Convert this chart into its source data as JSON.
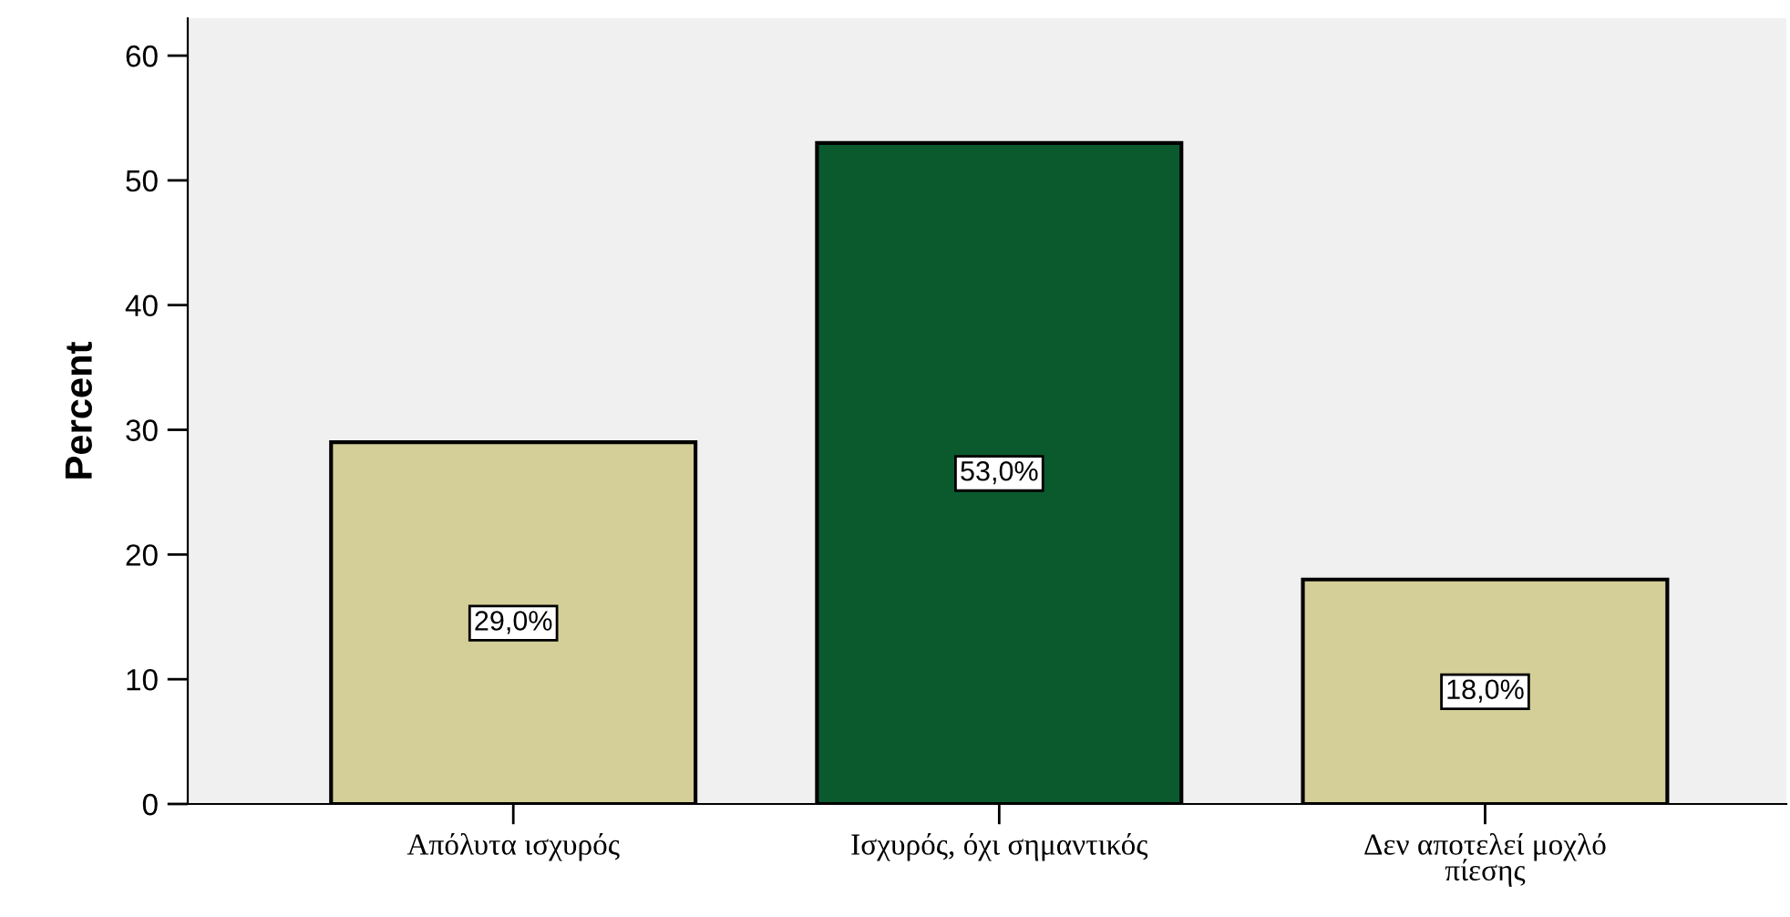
{
  "chart_data": {
    "type": "bar",
    "categories": [
      "Απόλυτα ισχυρός",
      "Ισχυρός, όχι σημαντικός",
      "Δεν αποτελεί μοχλό πίεσης"
    ],
    "values": [
      29.0,
      53.0,
      18.0
    ],
    "colors": [
      "#d4cf98",
      "#0b5a2e",
      "#d4cf98"
    ],
    "value_labels": [
      "29,0%",
      "53,0%",
      "18,0%"
    ],
    "ylabel": "Percent",
    "ylim": [
      0,
      63
    ],
    "yticks": [
      0,
      10,
      20,
      30,
      40,
      50,
      60
    ],
    "grid": false
  }
}
